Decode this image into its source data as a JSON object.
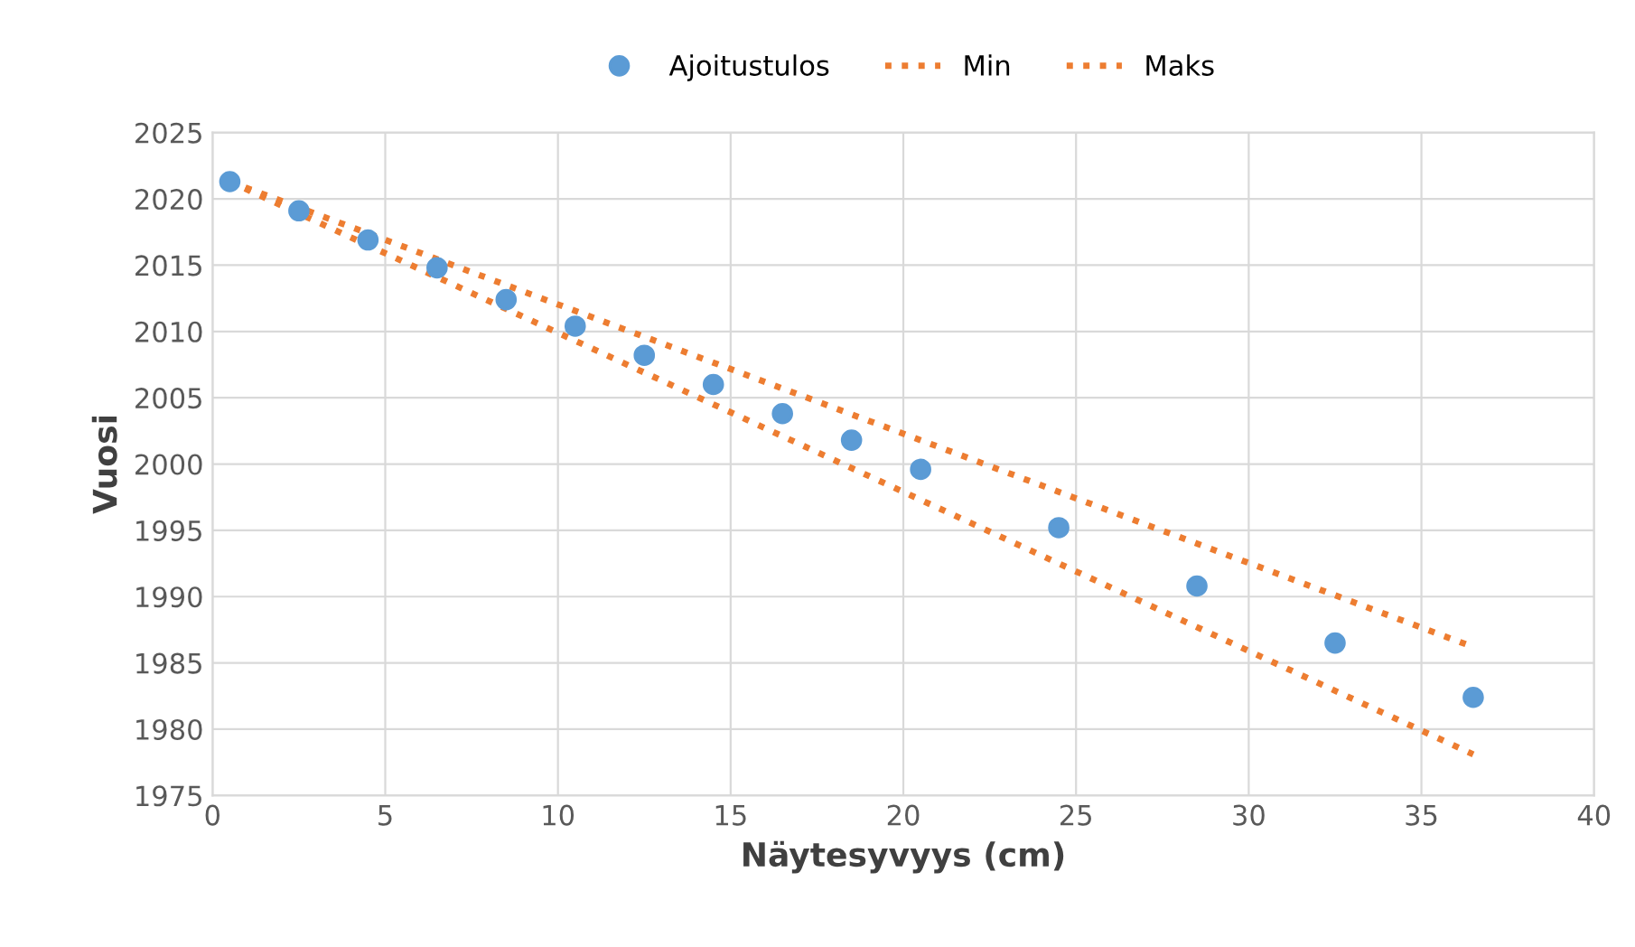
{
  "chart_data": {
    "type": "scatter",
    "xlabel": "Näytesyvyys (cm)",
    "ylabel": "Vuosi",
    "xlim": [
      0,
      40
    ],
    "xticks": [
      0,
      5,
      10,
      15,
      20,
      25,
      30,
      35,
      40
    ],
    "ylim": [
      1975,
      2025
    ],
    "yticks": [
      1975,
      1980,
      1985,
      1990,
      1995,
      2000,
      2005,
      2010,
      2015,
      2020,
      2025
    ],
    "grid": true,
    "legend": "top",
    "series": [
      {
        "name": "Ajoitustulos",
        "marker": "circle",
        "color": "#5b9bd5",
        "x": [
          0.5,
          2.5,
          4.5,
          6.5,
          8.5,
          10.5,
          12.5,
          14.5,
          16.5,
          18.5,
          20.5,
          24.5,
          28.5,
          32.5,
          36.5
        ],
        "values": [
          2021.3,
          2019.1,
          2016.9,
          2014.8,
          2012.4,
          2010.4,
          2008.2,
          2006.0,
          2003.8,
          2001.8,
          1999.6,
          1995.2,
          1990.8,
          1986.5,
          1982.4
        ]
      },
      {
        "name": "Min",
        "type": "line",
        "line_style": "dotted",
        "color": "#ed7d31",
        "x": [
          0.5,
          36.5
        ],
        "values": [
          2021.3,
          1978.1
        ]
      },
      {
        "name": "Maks",
        "type": "line",
        "line_style": "dotted",
        "color": "#ed7d31",
        "x": [
          0.5,
          36.5
        ],
        "values": [
          2021.3,
          1986.2
        ]
      }
    ]
  }
}
